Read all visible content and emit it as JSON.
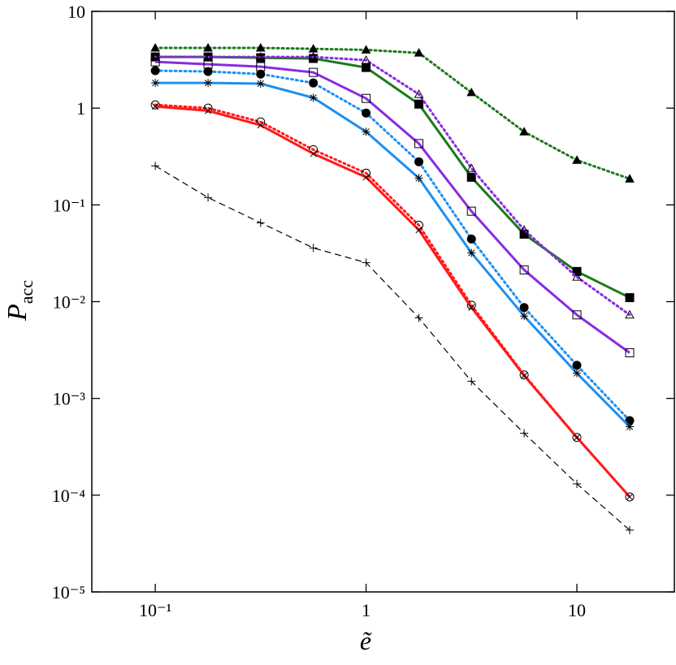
{
  "chart_data": {
    "type": "line",
    "xscale": "log",
    "yscale": "log",
    "xlabel": "ẽ",
    "ylabel": "P",
    "ylabel_subscript": "acc",
    "x": [
      0.1,
      0.178,
      0.316,
      0.562,
      1,
      1.78,
      3.16,
      5.62,
      10,
      17.8
    ],
    "xlim": [
      0.05,
      29
    ],
    "ylim": [
      1e-05,
      10
    ],
    "xticks": [
      {
        "value": 0.1,
        "label": "10⁻¹"
      },
      1,
      10
    ],
    "yticks": [
      {
        "value": 1e-05,
        "label": "10⁻⁵"
      },
      {
        "value": 0.0001,
        "label": "10⁻⁴"
      },
      {
        "value": 0.001,
        "label": "10⁻³"
      },
      {
        "value": 0.01,
        "label": "10⁻²"
      },
      {
        "value": 0.1,
        "label": "10⁻¹"
      },
      1,
      10
    ],
    "series": [
      {
        "color": "#1a7a1a",
        "linestyle": "dotted",
        "marker": "triangle",
        "marker_fill": true,
        "values": [
          4.19,
          4.19,
          4.19,
          4.1,
          4.0,
          3.72,
          1.45,
          0.57,
          0.29,
          0.186
        ]
      },
      {
        "color": "#1a7a1a",
        "linestyle": "solid",
        "marker": "square",
        "marker_fill": true,
        "values": [
          3.38,
          3.38,
          3.32,
          3.26,
          2.63,
          1.1,
          0.193,
          0.0498,
          0.0205,
          0.011
        ]
      },
      {
        "color": "#8a2be2",
        "linestyle": "dotted",
        "marker": "triangle",
        "marker_fill": false,
        "values": [
          3.38,
          3.38,
          3.38,
          3.38,
          3.13,
          1.39,
          0.239,
          0.055,
          0.018,
          0.0073
        ]
      },
      {
        "color": "#8a2be2",
        "linestyle": "solid",
        "marker": "square",
        "marker_fill": false,
        "values": [
          3.01,
          2.84,
          2.68,
          2.34,
          1.26,
          0.43,
          0.086,
          0.0213,
          0.0073,
          0.00296
        ]
      },
      {
        "color": "#1e8ff0",
        "linestyle": "dotted",
        "marker": "circle",
        "marker_fill": true,
        "values": [
          2.44,
          2.39,
          2.25,
          1.82,
          0.89,
          0.279,
          0.0444,
          0.0087,
          0.0022,
          0.00059
        ]
      },
      {
        "color": "#1e8ff0",
        "linestyle": "solid",
        "marker": "star",
        "marker_fill": false,
        "values": [
          1.82,
          1.82,
          1.79,
          1.28,
          0.57,
          0.189,
          0.0319,
          0.0071,
          0.00182,
          0.00051
        ]
      },
      {
        "color": "#ff1a1a",
        "linestyle": "dotted",
        "marker": "circle",
        "marker_fill": false,
        "values": [
          1.08,
          1.0,
          0.72,
          0.372,
          0.213,
          0.0616,
          0.0092,
          0.00175,
          0.000395,
          9.6e-05
        ]
      },
      {
        "color": "#ff1a1a",
        "linestyle": "solid",
        "marker": "cross",
        "marker_fill": false,
        "values": [
          1.04,
          0.94,
          0.667,
          0.338,
          0.193,
          0.055,
          0.0087,
          0.00172,
          0.000395,
          9.6e-05
        ]
      },
      {
        "color": "#000000",
        "linestyle": "dashed",
        "marker": "plus",
        "marker_fill": false,
        "values": [
          0.253,
          0.119,
          0.0653,
          0.0359,
          0.0253,
          0.0068,
          0.0015,
          0.000436,
          0.000131,
          4.35e-05
        ]
      }
    ]
  }
}
